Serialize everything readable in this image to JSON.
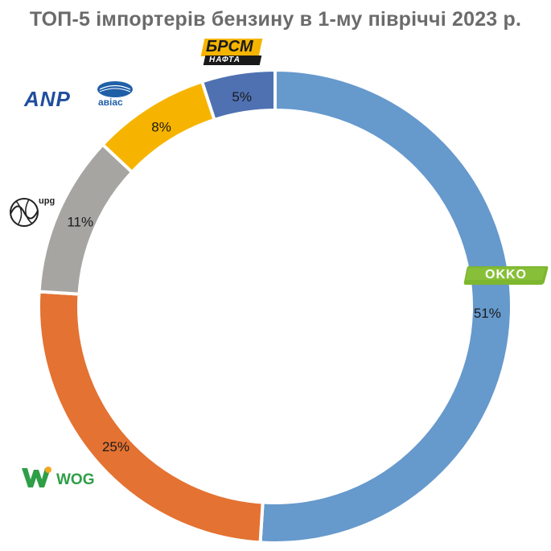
{
  "chart_data": {
    "type": "pie",
    "title": "ТОП-5 імпортерів бензину в 1-му півріччі 2023 р.",
    "categories": [
      "OKKO",
      "WOG",
      "UPG",
      "ANP / Авіас",
      "БРСМ-Нафта"
    ],
    "values": [
      51,
      25,
      11,
      8,
      5
    ],
    "labels": [
      "51%",
      "25%",
      "11%",
      "8%",
      "5%"
    ],
    "colors": [
      "#6699CC",
      "#E47232",
      "#A7A5A2",
      "#F6B400",
      "#4F71B2"
    ],
    "legend": "none"
  },
  "logos": {
    "okko": "OKKO",
    "wog": "WOG",
    "upg": "upg",
    "anp": "ANP",
    "avias": "авіас",
    "brsm_top": "БРСМ",
    "brsm_bottom": "НАФТА"
  }
}
